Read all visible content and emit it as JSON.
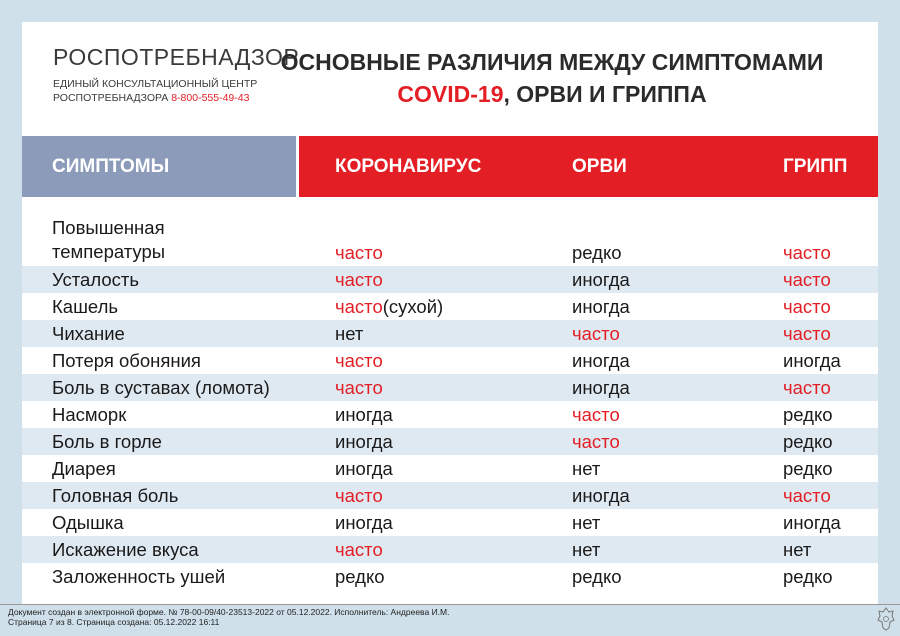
{
  "logo": {
    "name": "РОСПОТРЕБНАДЗОР",
    "line1": "ЕДИНЫЙ КОНСУЛЬТАЦИОННЫЙ ЦЕНТР",
    "line2": "РОСПОТРЕБНАДЗОРА",
    "phone": "8-800-555-49-43"
  },
  "title": {
    "line1": "ОСНОВНЫЕ РАЗЛИЧИЯ МЕЖДУ СИМПТОМАМИ",
    "red": "COVID-19",
    "rest": ", ОРВИ И ГРИППА"
  },
  "columns": {
    "symptoms": "СИМПТОМЫ",
    "covid": "КОРОНАВИРУС",
    "orvi": "ОРВИ",
    "flu": "ГРИПП"
  },
  "rows": [
    {
      "symptom_line1": "Повышенная",
      "symptom_line2": "температуры",
      "covid": "часто",
      "orvi": "редко",
      "flu": "часто"
    },
    {
      "symptom": "Усталость",
      "covid": "часто",
      "orvi": "иногда",
      "flu": "часто"
    },
    {
      "symptom": "Кашель",
      "covid": "часто",
      "covid_note": "(сухой)",
      "orvi": "иногда",
      "flu": "часто"
    },
    {
      "symptom": "Чихание",
      "covid": "нет",
      "orvi": "часто",
      "flu": "часто"
    },
    {
      "symptom": "Потеря обоняния",
      "covid": "часто",
      "orvi": "иногда",
      "flu": "иногда"
    },
    {
      "symptom": "Боль в суставах (ломота)",
      "covid": "часто",
      "orvi": "иногда",
      "flu": "часто"
    },
    {
      "symptom": "Насморк",
      "covid": "иногда",
      "orvi": "часто",
      "flu": "редко"
    },
    {
      "symptom": "Боль в горле",
      "covid": "иногда",
      "orvi": "часто",
      "flu": "редко"
    },
    {
      "symptom": "Диарея",
      "covid": "иногда",
      "orvi": "нет",
      "flu": "редко"
    },
    {
      "symptom": "Головная боль",
      "covid": "часто",
      "orvi": "иногда",
      "flu": "часто"
    },
    {
      "symptom": "Одышка",
      "covid": "иногда",
      "orvi": "нет",
      "flu": "иногда"
    },
    {
      "symptom": "Искажение вкуса",
      "covid": "часто",
      "orvi": "нет",
      "flu": "нет"
    },
    {
      "symptom": "Заложенность ушей",
      "covid": "редко",
      "orvi": "редко",
      "flu": "редко"
    }
  ],
  "colors": {
    "accent": "#e31e24",
    "header_left": "#8d9bbb",
    "row_shade": "#dfe9f2"
  },
  "footer": {
    "line1": "Документ создан в электронной форме. № 78-00-09/40-23513-2022 от 05.12.2022. Исполнитель: Андреева И.М.",
    "line2": "Страница 7 из 8. Страница создана: 05.12.2022 16:11"
  }
}
